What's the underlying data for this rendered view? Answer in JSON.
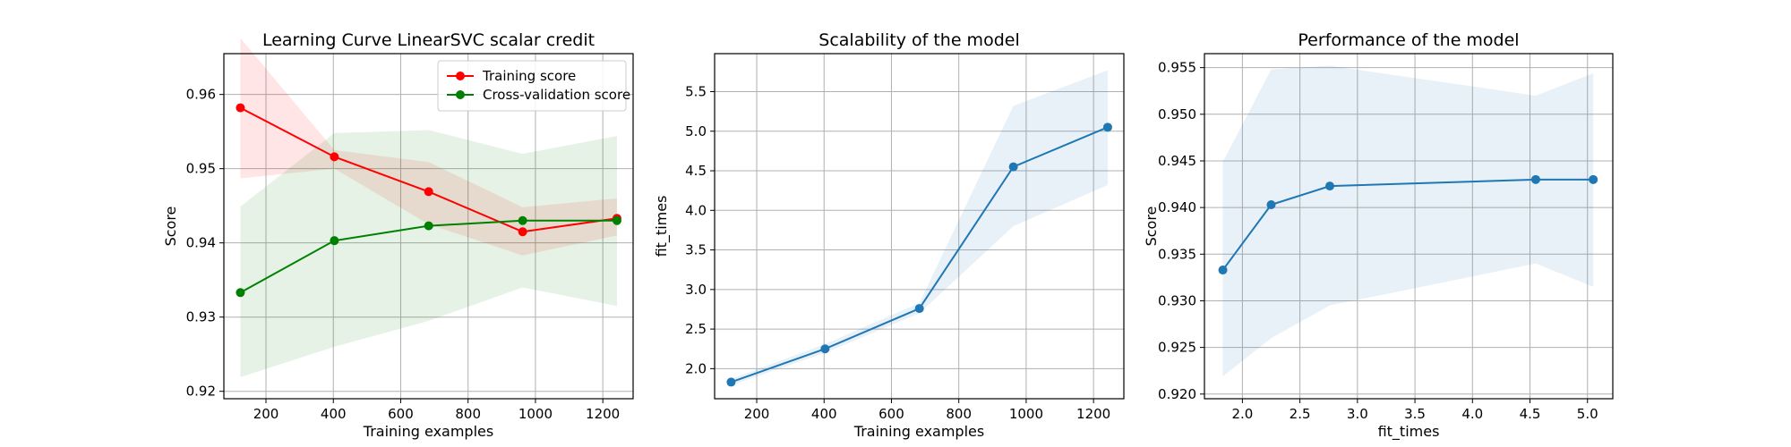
{
  "chart_data": [
    {
      "type": "line",
      "title": "Learning Curve LinearSVC scalar credit",
      "xlabel": "Training examples",
      "ylabel": "Score",
      "xlim": [
        75,
        1290
      ],
      "ylim": [
        0.919,
        0.9655
      ],
      "xticks": [
        200,
        400,
        600,
        800,
        1000,
        1200
      ],
      "yticks": [
        0.92,
        0.93,
        0.94,
        0.95,
        0.96
      ],
      "ytick_format": 2,
      "grid": true,
      "legend": "upper right",
      "series": [
        {
          "name": "Training score",
          "color": "#ff0000",
          "x": [
            124,
            403,
            683,
            962,
            1242
          ],
          "values": [
            0.9582,
            0.9516,
            0.9469,
            0.9415,
            0.9433
          ],
          "band_upper": [
            0.9676,
            0.9525,
            0.9509,
            0.9448,
            0.946
          ],
          "band_lower": [
            0.9487,
            0.95,
            0.9425,
            0.9383,
            0.941
          ]
        },
        {
          "name": "Cross-validation score",
          "color": "#008000",
          "x": [
            124,
            403,
            683,
            962,
            1242
          ],
          "values": [
            0.9333,
            0.9403,
            0.9423,
            0.943,
            0.943
          ],
          "band_upper": [
            0.9449,
            0.9548,
            0.9552,
            0.952,
            0.9544
          ],
          "band_lower": [
            0.9219,
            0.926,
            0.9295,
            0.934,
            0.9315
          ]
        }
      ]
    },
    {
      "type": "line",
      "title": "Scalability of the model",
      "xlabel": "Training examples",
      "ylabel": "fit_times",
      "xlim": [
        75,
        1290
      ],
      "ylim": [
        1.62,
        5.98
      ],
      "xticks": [
        200,
        400,
        600,
        800,
        1000,
        1200
      ],
      "yticks": [
        2.0,
        2.5,
        3.0,
        3.5,
        4.0,
        4.5,
        5.0,
        5.5
      ],
      "ytick_format": 1,
      "grid": true,
      "series": [
        {
          "color": "#1f77b4",
          "x": [
            124,
            403,
            683,
            962,
            1242
          ],
          "values": [
            1.83,
            2.25,
            2.76,
            4.55,
            5.05
          ],
          "band_upper": [
            1.87,
            2.31,
            2.83,
            5.32,
            5.77
          ],
          "band_lower": [
            1.79,
            2.2,
            2.7,
            3.8,
            4.32
          ]
        }
      ]
    },
    {
      "type": "line",
      "title": "Performance of the model",
      "xlabel": "fit_times",
      "ylabel": "Score",
      "xlim": [
        1.67,
        5.22
      ],
      "ylim": [
        0.9195,
        0.9565
      ],
      "xticks": [
        2.0,
        2.5,
        3.0,
        3.5,
        4.0,
        4.5,
        5.0
      ],
      "xtick_format": 1,
      "yticks": [
        0.92,
        0.925,
        0.93,
        0.935,
        0.94,
        0.945,
        0.95,
        0.955
      ],
      "ytick_format": 3,
      "grid": true,
      "series": [
        {
          "color": "#1f77b4",
          "x": [
            1.83,
            2.25,
            2.76,
            4.55,
            5.05
          ],
          "values": [
            0.9333,
            0.9403,
            0.9423,
            0.943,
            0.943
          ],
          "band_upper": [
            0.9449,
            0.9548,
            0.9552,
            0.952,
            0.9544
          ],
          "band_lower": [
            0.9219,
            0.926,
            0.9295,
            0.934,
            0.9315
          ]
        }
      ]
    }
  ]
}
